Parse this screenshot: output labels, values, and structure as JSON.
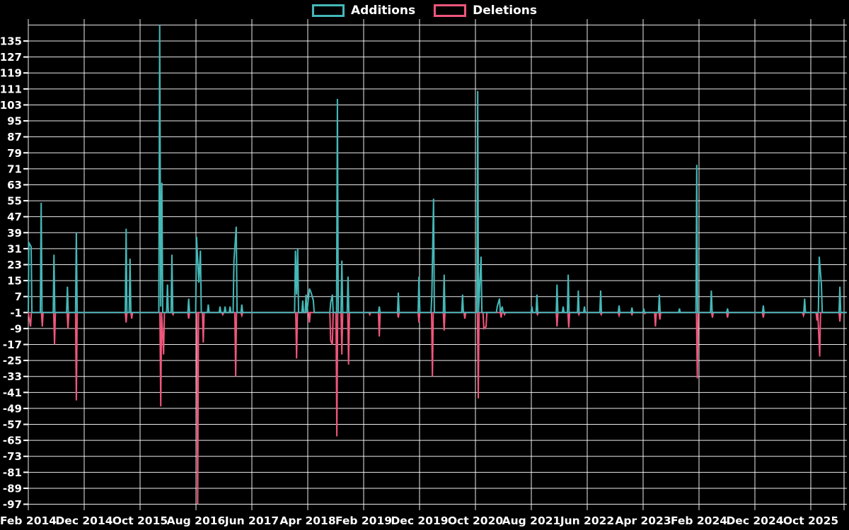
{
  "chart_data": {
    "type": "line",
    "title": "",
    "description": "Weekly additions and deletions spike chart on black background",
    "background_color": "#000000",
    "grid": {
      "shown": true,
      "color": "#ffffff"
    },
    "legend_position": "top-center",
    "baseline_value": -1,
    "x_unit": "months since Feb 2014 tick",
    "x_axis": {
      "tick_labels": [
        "Feb 2014",
        "Dec 2014",
        "Oct 2015",
        "Aug 2016",
        "Jun 2017",
        "Apr 2018",
        "Feb 2019",
        "Dec 2019",
        "Oct 2020",
        "Aug 2021",
        "Jun 2022",
        "Apr 2023",
        "Feb 2024",
        "Dec 2024",
        "Oct 2025"
      ],
      "months_between_ticks": 10
    },
    "y_axis": {
      "tick_labels": [
        135,
        127,
        119,
        111,
        103,
        95,
        87,
        79,
        71,
        63,
        55,
        47,
        39,
        31,
        23,
        15,
        7,
        -1,
        -9,
        -17,
        -25,
        -33,
        -41,
        -49,
        -57,
        -65,
        -73,
        -81,
        -89,
        -97
      ],
      "tick_step": 8,
      "top_boundary_value": 143,
      "ylim": [
        -97,
        143
      ]
    },
    "series": [
      {
        "name": "Additions",
        "color": "#45b8b8",
        "points": [
          [
            0.1,
            34
          ],
          [
            0.5,
            32
          ],
          [
            2.3,
            54
          ],
          [
            4.6,
            28
          ],
          [
            7.0,
            12
          ],
          [
            8.6,
            39
          ],
          [
            17.5,
            41
          ],
          [
            18.2,
            26
          ],
          [
            23.5,
            143
          ],
          [
            23.7,
            2
          ],
          [
            23.9,
            64
          ],
          [
            24.9,
            13
          ],
          [
            25.7,
            28
          ],
          [
            28.7,
            6
          ],
          [
            30.1,
            37
          ],
          [
            30.5,
            14
          ],
          [
            30.8,
            30
          ],
          [
            32.2,
            3
          ],
          [
            34.3,
            2
          ],
          [
            35.2,
            2
          ],
          [
            36.1,
            2
          ],
          [
            36.8,
            25
          ],
          [
            37.2,
            42
          ],
          [
            38.2,
            3
          ],
          [
            47.8,
            30
          ],
          [
            48.0,
            8
          ],
          [
            48.2,
            31
          ],
          [
            49.1,
            5
          ],
          [
            49.7,
            8
          ],
          [
            50.3,
            11
          ],
          [
            50.6,
            9
          ],
          [
            51.0,
            5
          ],
          [
            54.1,
            4
          ],
          [
            54.4,
            8
          ],
          [
            55.3,
            106
          ],
          [
            56.1,
            25
          ],
          [
            57.2,
            17
          ],
          [
            62.8,
            2
          ],
          [
            66.2,
            9
          ],
          [
            69.9,
            17
          ],
          [
            72.2,
            8
          ],
          [
            72.5,
            56
          ],
          [
            74.4,
            18
          ],
          [
            77.7,
            8
          ],
          [
            80.4,
            110
          ],
          [
            81.0,
            27
          ],
          [
            83.9,
            2
          ],
          [
            84.3,
            6
          ],
          [
            84.8,
            2
          ],
          [
            90.1,
            2
          ],
          [
            91.0,
            8
          ],
          [
            94.6,
            13
          ],
          [
            95.7,
            2
          ],
          [
            96.6,
            18
          ],
          [
            98.4,
            10
          ],
          [
            99.5,
            2
          ],
          [
            102.4,
            10
          ],
          [
            105.7,
            2.5
          ],
          [
            108.0,
            1.5
          ],
          [
            110.1,
            1
          ],
          [
            112.9,
            8
          ],
          [
            116.5,
            1
          ],
          [
            119.6,
            73
          ],
          [
            122.2,
            10
          ],
          [
            125.1,
            1
          ],
          [
            131.5,
            2.5
          ],
          [
            138.9,
            6
          ],
          [
            141.5,
            27
          ],
          [
            141.9,
            13
          ],
          [
            145.2,
            12
          ]
        ]
      },
      {
        "name": "Deletions",
        "color": "#f0567c",
        "points": [
          [
            0.4,
            -8
          ],
          [
            2.5,
            -8
          ],
          [
            4.7,
            -17
          ],
          [
            7.1,
            -9
          ],
          [
            8.6,
            -45
          ],
          [
            17.5,
            -6
          ],
          [
            18.5,
            -4
          ],
          [
            23.7,
            -48
          ],
          [
            24.2,
            -22
          ],
          [
            25.9,
            -2
          ],
          [
            28.7,
            -4
          ],
          [
            30.3,
            -97
          ],
          [
            31.3,
            -16
          ],
          [
            34.8,
            -2
          ],
          [
            37.1,
            -33
          ],
          [
            38.2,
            -2.5
          ],
          [
            48.0,
            -24
          ],
          [
            50.3,
            -6
          ],
          [
            54.1,
            -15
          ],
          [
            54.4,
            -17
          ],
          [
            55.2,
            -63
          ],
          [
            56.1,
            -22
          ],
          [
            57.3,
            -27
          ],
          [
            61.1,
            -2
          ],
          [
            62.8,
            -13
          ],
          [
            66.2,
            -3.5
          ],
          [
            69.9,
            -6
          ],
          [
            72.3,
            -33
          ],
          [
            74.4,
            -10
          ],
          [
            78.1,
            -4
          ],
          [
            80.5,
            -44
          ],
          [
            81.5,
            -9
          ],
          [
            81.9,
            -8
          ],
          [
            84.6,
            -3.5
          ],
          [
            85.2,
            -2
          ],
          [
            91.1,
            -2
          ],
          [
            94.6,
            -8
          ],
          [
            96.7,
            -8.5
          ],
          [
            98.5,
            -2
          ],
          [
            102.5,
            -2
          ],
          [
            105.7,
            -2.5
          ],
          [
            108.0,
            -2
          ],
          [
            110.3,
            -1.5
          ],
          [
            112.2,
            -8
          ],
          [
            113.0,
            -4.5
          ],
          [
            119.7,
            -34
          ],
          [
            122.4,
            -3.5
          ],
          [
            125.1,
            -3.5
          ],
          [
            131.5,
            -3.5
          ],
          [
            138.7,
            -2.5
          ],
          [
            141.1,
            -5
          ],
          [
            141.6,
            -23
          ],
          [
            145.2,
            -5.5
          ]
        ]
      }
    ]
  }
}
